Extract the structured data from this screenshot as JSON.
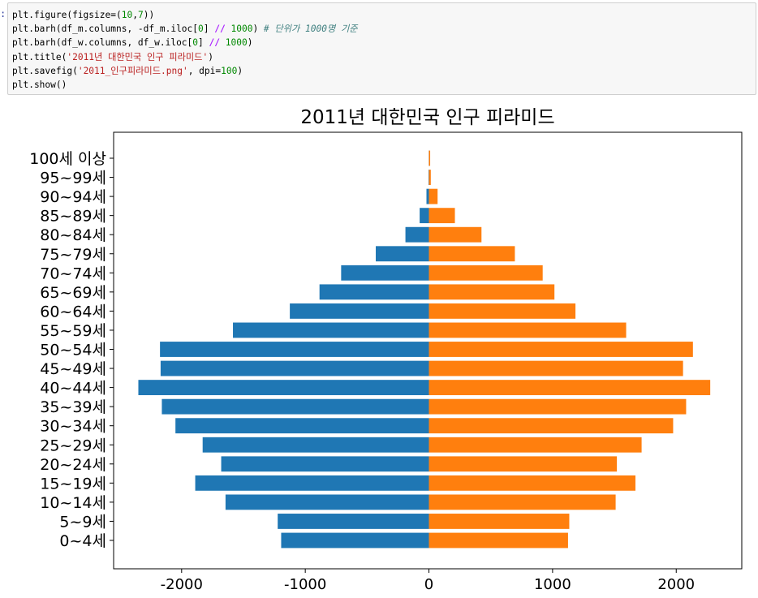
{
  "cell": {
    "prompt": ":",
    "lines": [
      {
        "spans": [
          {
            "t": "plt.figure(figsize=(",
            "c": ""
          },
          {
            "t": "10",
            "c": "num"
          },
          {
            "t": ",",
            "c": ""
          },
          {
            "t": "7",
            "c": "num"
          },
          {
            "t": "))",
            "c": ""
          }
        ]
      },
      {
        "spans": [
          {
            "t": "plt.barh(df_m.columns, -df_m.iloc[",
            "c": ""
          },
          {
            "t": "0",
            "c": "num"
          },
          {
            "t": "] ",
            "c": ""
          },
          {
            "t": "//",
            "c": "op"
          },
          {
            "t": " ",
            "c": ""
          },
          {
            "t": "1000",
            "c": "num"
          },
          {
            "t": ") ",
            "c": ""
          },
          {
            "t": "# 단위가 1000명 기준",
            "c": "cm"
          }
        ]
      },
      {
        "spans": [
          {
            "t": "plt.barh(df_w.columns, df_w.iloc[",
            "c": ""
          },
          {
            "t": "0",
            "c": "num"
          },
          {
            "t": "] ",
            "c": ""
          },
          {
            "t": "//",
            "c": "op"
          },
          {
            "t": " ",
            "c": ""
          },
          {
            "t": "1000",
            "c": "num"
          },
          {
            "t": ")",
            "c": ""
          }
        ]
      },
      {
        "spans": [
          {
            "t": "plt.title(",
            "c": ""
          },
          {
            "t": "'2011년 대한민국 인구 피라미드'",
            "c": "str"
          },
          {
            "t": ")",
            "c": ""
          }
        ]
      },
      {
        "spans": [
          {
            "t": "plt.savefig(",
            "c": ""
          },
          {
            "t": "'2011_인구피라미드.png'",
            "c": "str"
          },
          {
            "t": ", dpi=",
            "c": ""
          },
          {
            "t": "100",
            "c": "num"
          },
          {
            "t": ")",
            "c": ""
          }
        ]
      },
      {
        "spans": [
          {
            "t": "plt.show()",
            "c": ""
          }
        ]
      }
    ]
  },
  "colors": {
    "male": "#1f77b4",
    "female": "#ff7f0e",
    "code_bg": "#f7f7f7",
    "code_border": "#cfcfcf"
  },
  "chart_data": {
    "type": "bar",
    "orientation": "horizontal",
    "title": "2011년 대한민국 인구 피라미드",
    "xlabel": "",
    "ylabel": "",
    "categories": [
      "0~4세",
      "5~9세",
      "10~14세",
      "15~19세",
      "20~24세",
      "25~29세",
      "30~34세",
      "35~39세",
      "40~44세",
      "45~49세",
      "50~54세",
      "55~59세",
      "60~64세",
      "65~69세",
      "70~74세",
      "75~79세",
      "80~84세",
      "85~89세",
      "90~94세",
      "95~99세",
      "100세 이상"
    ],
    "series": [
      {
        "values": [
          -1195,
          -1223,
          -1645,
          -1890,
          -1680,
          -1830,
          -2050,
          -2160,
          -2350,
          -2170,
          -2175,
          -1585,
          -1125,
          -885,
          -710,
          -430,
          -190,
          -75,
          -20,
          -3,
          -1
        ]
      },
      {
        "values": [
          1125,
          1135,
          1510,
          1670,
          1520,
          1720,
          1975,
          2080,
          2275,
          2055,
          2135,
          1595,
          1185,
          1015,
          920,
          695,
          425,
          210,
          70,
          15,
          10
        ]
      }
    ],
    "xticks": [
      -2000,
      -1000,
      0,
      1000,
      2000
    ],
    "xlim": [
      -2550,
      2530
    ],
    "grid": false,
    "legend": "none"
  }
}
